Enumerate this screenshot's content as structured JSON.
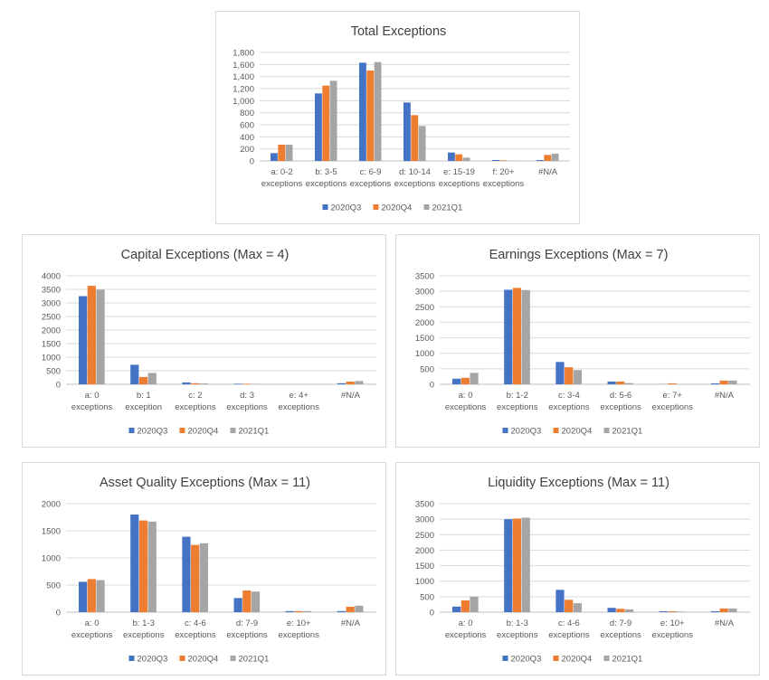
{
  "colors": [
    "#4472c4",
    "#ed7d31",
    "#a5a5a5"
  ],
  "chart_data": [
    {
      "type": "bar",
      "title": "Total Exceptions",
      "categories": [
        [
          "a: 0-2",
          "exceptions"
        ],
        [
          "b: 3-5",
          "exceptions"
        ],
        [
          "c: 6-9",
          "exceptions"
        ],
        [
          "d: 10-14",
          "exceptions"
        ],
        [
          "e: 15-19",
          "exceptions"
        ],
        [
          "f: 20+",
          "exceptions"
        ],
        [
          "#N/A"
        ]
      ],
      "ylim": [
        0,
        1800
      ],
      "yticks": [
        0,
        200,
        400,
        600,
        800,
        1000,
        1200,
        1400,
        1600,
        1800
      ],
      "ytick_labels": [
        "0",
        "200",
        "400",
        "600",
        "800",
        "1,000",
        "1,200",
        "1,400",
        "1,600",
        "1,800"
      ],
      "series": [
        {
          "name": "2020Q3",
          "values": [
            130,
            1120,
            1630,
            970,
            140,
            15,
            15
          ]
        },
        {
          "name": "2020Q4",
          "values": [
            270,
            1250,
            1500,
            760,
            110,
            10,
            100
          ]
        },
        {
          "name": "2021Q1",
          "values": [
            270,
            1330,
            1640,
            580,
            55,
            5,
            120
          ]
        }
      ],
      "legend": "bottom",
      "grid": true
    },
    {
      "type": "bar",
      "title": "Capital Exceptions (Max = 4)",
      "categories": [
        [
          "a: 0",
          "exceptions"
        ],
        [
          "b: 1",
          "exception"
        ],
        [
          "c: 2",
          "exceptions"
        ],
        [
          "d: 3",
          "exceptions"
        ],
        [
          "e: 4+",
          "exceptions"
        ],
        [
          "#N/A"
        ]
      ],
      "ylim": [
        0,
        4000
      ],
      "yticks": [
        0,
        500,
        1000,
        1500,
        2000,
        2500,
        3000,
        3500,
        4000
      ],
      "ytick_labels": [
        "0",
        "500",
        "1000",
        "1500",
        "2000",
        "2500",
        "3000",
        "3500",
        "4000"
      ],
      "series": [
        {
          "name": "2020Q3",
          "values": [
            3250,
            720,
            70,
            20,
            0,
            40
          ]
        },
        {
          "name": "2020Q4",
          "values": [
            3630,
            270,
            40,
            20,
            0,
            100
          ]
        },
        {
          "name": "2021Q1",
          "values": [
            3490,
            420,
            30,
            15,
            0,
            120
          ]
        }
      ],
      "legend": "bottom",
      "grid": true
    },
    {
      "type": "bar",
      "title": "Earnings Exceptions (Max = 7)",
      "categories": [
        [
          "a: 0",
          "exceptions"
        ],
        [
          "b: 1-2",
          "exceptions"
        ],
        [
          "c: 3-4",
          "exceptions"
        ],
        [
          "d: 5-6",
          "exceptions"
        ],
        [
          "e: 7+",
          "exceptions"
        ],
        [
          "#N/A"
        ]
      ],
      "ylim": [
        0,
        3500
      ],
      "yticks": [
        0,
        500,
        1000,
        1500,
        2000,
        2500,
        3000,
        3500
      ],
      "ytick_labels": [
        "0",
        "500",
        "1000",
        "1500",
        "2000",
        "2500",
        "3000",
        "3500"
      ],
      "series": [
        {
          "name": "2020Q3",
          "values": [
            180,
            3050,
            720,
            90,
            5,
            30
          ]
        },
        {
          "name": "2020Q4",
          "values": [
            210,
            3110,
            550,
            90,
            30,
            120
          ]
        },
        {
          "name": "2021Q1",
          "values": [
            370,
            3040,
            460,
            40,
            5,
            120
          ]
        }
      ],
      "legend": "bottom",
      "grid": true
    },
    {
      "type": "bar",
      "title": "Asset Quality Exceptions (Max = 11)",
      "categories": [
        [
          "a: 0",
          "exceptions"
        ],
        [
          "b: 1-3",
          "exceptions"
        ],
        [
          "c: 4-6",
          "exceptions"
        ],
        [
          "d: 7-9",
          "exceptions"
        ],
        [
          "e: 10+",
          "exceptions"
        ],
        [
          "#N/A"
        ]
      ],
      "ylim": [
        0,
        2000
      ],
      "yticks": [
        0,
        500,
        1000,
        1500,
        2000
      ],
      "ytick_labels": [
        "0",
        "500",
        "1000",
        "1500",
        "2000"
      ],
      "series": [
        {
          "name": "2020Q3",
          "values": [
            560,
            1800,
            1390,
            260,
            20,
            20
          ]
        },
        {
          "name": "2020Q4",
          "values": [
            610,
            1690,
            1240,
            400,
            20,
            100
          ]
        },
        {
          "name": "2021Q1",
          "values": [
            590,
            1670,
            1270,
            380,
            20,
            120
          ]
        }
      ],
      "legend": "bottom",
      "grid": true
    },
    {
      "type": "bar",
      "title": "Liquidity Exceptions (Max = 11)",
      "categories": [
        [
          "a: 0",
          "exceptions"
        ],
        [
          "b: 1-3",
          "exceptions"
        ],
        [
          "c: 4-6",
          "exceptions"
        ],
        [
          "d: 7-9",
          "exceptions"
        ],
        [
          "e: 10+",
          "exceptions"
        ],
        [
          "#N/A"
        ]
      ],
      "ylim": [
        0,
        3500
      ],
      "yticks": [
        0,
        500,
        1000,
        1500,
        2000,
        2500,
        3000,
        3500
      ],
      "ytick_labels": [
        "0",
        "500",
        "1000",
        "1500",
        "2000",
        "2500",
        "3000",
        "3500"
      ],
      "series": [
        {
          "name": "2020Q3",
          "values": [
            180,
            3000,
            720,
            140,
            30,
            30
          ]
        },
        {
          "name": "2020Q4",
          "values": [
            380,
            3020,
            400,
            110,
            30,
            120
          ]
        },
        {
          "name": "2021Q1",
          "values": [
            500,
            3050,
            290,
            90,
            20,
            120
          ]
        }
      ],
      "legend": "bottom",
      "grid": true
    }
  ]
}
